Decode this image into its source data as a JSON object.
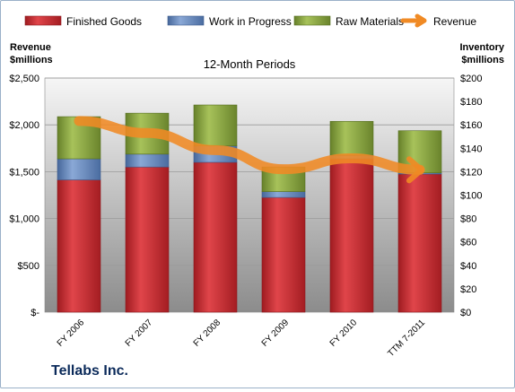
{
  "company": "Tellabs Inc.",
  "chart_data": {
    "type": "bar",
    "stacked": true,
    "title": "12-Month Periods",
    "categories": [
      "FY 2006",
      "FY 2007",
      "FY 2008",
      "FY 2009",
      "FY 2010",
      "TTM 7-2011"
    ],
    "left_axis": {
      "label_line1": "Revenue",
      "label_line2": "$millions",
      "ylim": [
        0,
        2500
      ],
      "ticks": [
        {
          "value": 0,
          "label": "$-"
        },
        {
          "value": 500,
          "label": "$500"
        },
        {
          "value": 1000,
          "label": "$1,000"
        },
        {
          "value": 1500,
          "label": "$1,500"
        },
        {
          "value": 2000,
          "label": "$2,000"
        },
        {
          "value": 2500,
          "label": "$2,500"
        }
      ]
    },
    "right_axis": {
      "label_line1": "Inventory",
      "label_line2": "$millions",
      "ylim": [
        0,
        200
      ],
      "ticks": [
        {
          "value": 0,
          "label": "$0"
        },
        {
          "value": 20,
          "label": "$20"
        },
        {
          "value": 40,
          "label": "$40"
        },
        {
          "value": 60,
          "label": "$60"
        },
        {
          "value": 80,
          "label": "$80"
        },
        {
          "value": 100,
          "label": "$100"
        },
        {
          "value": 120,
          "label": "$120"
        },
        {
          "value": 140,
          "label": "$140"
        },
        {
          "value": 160,
          "label": "$160"
        },
        {
          "value": 180,
          "label": "$180"
        },
        {
          "value": 200,
          "label": "$200"
        }
      ]
    },
    "series": [
      {
        "name": "Finished Goods",
        "axis": "right",
        "color": "#c0272d",
        "values": [
          113,
          124,
          128,
          98,
          131,
          118
        ]
      },
      {
        "name": "Work in Progress",
        "axis": "right",
        "color": "#5a7fb5",
        "values": [
          18,
          11,
          14,
          5,
          3,
          1
        ]
      },
      {
        "name": "Raw Materials",
        "axis": "right",
        "color": "#7e9a35",
        "values": [
          36,
          35,
          35,
          21,
          29,
          36
        ]
      }
    ],
    "line_series": {
      "name": "Revenue",
      "axis": "left",
      "color": "#f08a24",
      "values": [
        2041,
        1913,
        1730,
        1526,
        1643,
        1520
      ]
    },
    "grid": true,
    "legend_position": "top"
  }
}
